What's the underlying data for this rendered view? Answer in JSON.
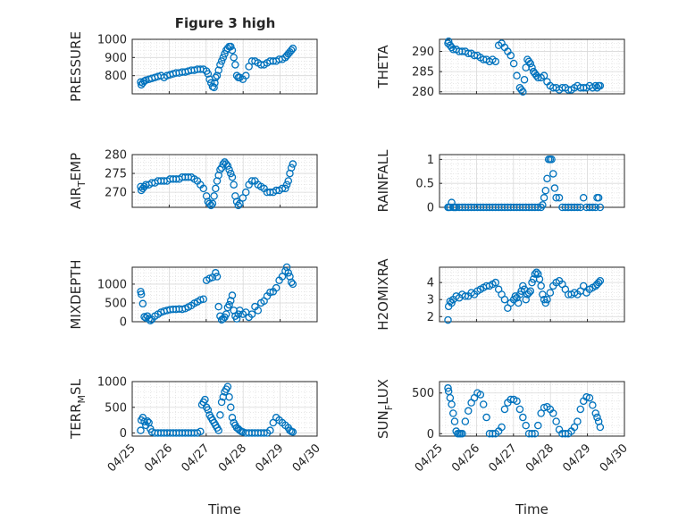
{
  "chart_data": [
    {
      "type": "scatter",
      "title": "Figure 3 high",
      "ylabel": "PRESSURE",
      "xlabel": "",
      "ylim": [
        700,
        1000
      ],
      "yticks": [
        800,
        900,
        1000
      ],
      "x": [
        120.6,
        121,
        122,
        123,
        124,
        126,
        128,
        130,
        132,
        134,
        136,
        138,
        140,
        142,
        144,
        146,
        148,
        150,
        152,
        154,
        156,
        158,
        160,
        162,
        164,
        165,
        166,
        167,
        168,
        169,
        169.5,
        170,
        171,
        172,
        173,
        174,
        175,
        176,
        177,
        178,
        179,
        180,
        181,
        182,
        183,
        184,
        185,
        186,
        188,
        190,
        192,
        194,
        196,
        198,
        200,
        202,
        204,
        206,
        208,
        210,
        212,
        214,
        216,
        217,
        218,
        219,
        220,
        221
      ],
      "y": [
        765,
        750,
        760,
        770,
        775,
        780,
        785,
        790,
        795,
        800,
        790,
        800,
        805,
        810,
        815,
        815,
        820,
        820,
        825,
        830,
        830,
        835,
        835,
        835,
        825,
        810,
        780,
        760,
        740,
        735,
        760,
        790,
        800,
        830,
        860,
        880,
        900,
        920,
        940,
        950,
        960,
        960,
        940,
        900,
        860,
        800,
        790,
        790,
        780,
        800,
        850,
        880,
        880,
        870,
        860,
        860,
        870,
        880,
        880,
        880,
        890,
        890,
        900,
        910,
        920,
        930,
        940,
        950
      ]
    },
    {
      "type": "scatter",
      "title": "",
      "ylabel": "THETA",
      "xlabel": "",
      "ylim": [
        279.5,
        293
      ],
      "yticks": [
        280,
        285,
        290
      ],
      "x": [
        120.6,
        121,
        122,
        123,
        124,
        126,
        128,
        130,
        132,
        134,
        136,
        138,
        140,
        142,
        144,
        146,
        148,
        150,
        152,
        154,
        156,
        158,
        160,
        162,
        164,
        166,
        168,
        169,
        170,
        171,
        172,
        173,
        174,
        175,
        176,
        177,
        178,
        179,
        180,
        182,
        184,
        186,
        188,
        190,
        192,
        194,
        196,
        198,
        200,
        202,
        204,
        206,
        208,
        210,
        212,
        214,
        216,
        218,
        219,
        220,
        221
      ],
      "y": [
        292,
        292.5,
        291.5,
        291,
        290.5,
        290.5,
        290,
        290,
        290,
        289.5,
        289.5,
        289,
        289,
        288.5,
        288,
        288,
        287.5,
        288,
        287.5,
        291.5,
        292,
        291,
        290,
        289,
        287,
        284,
        281,
        280.5,
        280,
        283,
        286,
        288,
        287.5,
        287,
        286,
        285,
        284.5,
        284,
        283.5,
        283.5,
        284,
        282.5,
        281.5,
        281,
        281,
        280.5,
        281,
        281,
        280.5,
        280.5,
        281,
        281.5,
        281,
        281,
        281,
        281.5,
        281,
        281.5,
        281,
        281.5,
        281.5
      ]
    },
    {
      "type": "scatter",
      "title": "",
      "ylabel": "AIR_TEMP",
      "xlabel": "",
      "ylim": [
        266,
        280
      ],
      "yticks": [
        270,
        275,
        280
      ],
      "x": [
        120.6,
        121,
        122,
        123,
        124,
        126,
        128,
        130,
        132,
        134,
        136,
        138,
        140,
        142,
        144,
        146,
        148,
        150,
        152,
        154,
        156,
        158,
        160,
        162,
        164,
        165,
        166,
        167,
        168,
        169,
        170,
        171,
        172,
        173,
        174,
        175,
        176,
        177,
        178,
        179,
        180,
        181,
        182,
        183,
        184,
        185,
        186,
        188,
        190,
        192,
        194,
        196,
        198,
        200,
        202,
        204,
        206,
        208,
        210,
        212,
        214,
        216,
        217,
        218,
        219,
        220,
        221
      ],
      "y": [
        271.5,
        270.5,
        271,
        271.5,
        272,
        272,
        272.5,
        272.5,
        273,
        273,
        273,
        273,
        273.5,
        273.5,
        273.5,
        273.5,
        274,
        274,
        274,
        274,
        273.5,
        273,
        272,
        271,
        269,
        267.5,
        267,
        266.5,
        267,
        269,
        271,
        273,
        274.5,
        276,
        276.5,
        277.5,
        278,
        277.5,
        277,
        276,
        275,
        274,
        272,
        269,
        267.5,
        266.5,
        267,
        268.5,
        270,
        272,
        273,
        273,
        272,
        271.5,
        271,
        270,
        270,
        270,
        270.5,
        270.5,
        271,
        271,
        272,
        273,
        275,
        276.5,
        277.5
      ]
    },
    {
      "type": "scatter",
      "title": "",
      "ylabel": "RAINFALL",
      "xlabel": "",
      "ylim": [
        0,
        1.1
      ],
      "yticks": [
        0,
        0.5,
        1
      ],
      "x": [
        120.6,
        121,
        122,
        123,
        124,
        125,
        126,
        128,
        130,
        132,
        134,
        136,
        138,
        140,
        142,
        144,
        146,
        148,
        150,
        152,
        154,
        156,
        158,
        160,
        162,
        164,
        166,
        168,
        170,
        172,
        174,
        176,
        178,
        180,
        182,
        183,
        184,
        185,
        186,
        187,
        188,
        189,
        190,
        191,
        192,
        194,
        196,
        198,
        200,
        202,
        204,
        206,
        208,
        210,
        212,
        214,
        216,
        218,
        219,
        220,
        221
      ],
      "y": [
        0,
        0,
        0,
        0.1,
        0,
        0,
        0,
        0,
        0,
        0,
        0,
        0,
        0,
        0,
        0,
        0,
        0,
        0,
        0,
        0,
        0,
        0,
        0,
        0,
        0,
        0,
        0,
        0,
        0,
        0,
        0,
        0,
        0,
        0,
        0,
        0.05,
        0.2,
        0.35,
        0.6,
        1,
        1,
        1,
        0.7,
        0.4,
        0.2,
        0.2,
        0,
        0,
        0,
        0,
        0,
        0,
        0,
        0.2,
        0,
        0,
        0,
        0,
        0.2,
        0.2,
        0
      ]
    },
    {
      "type": "scatter",
      "title": "",
      "ylabel": "MIXDEPTH",
      "xlabel": "",
      "ylim": [
        0,
        1450
      ],
      "yticks": [
        0,
        500,
        1000
      ],
      "x": [
        120.6,
        121,
        122,
        123,
        124,
        125,
        126,
        127,
        128,
        130,
        132,
        134,
        136,
        138,
        140,
        142,
        144,
        146,
        148,
        150,
        152,
        154,
        156,
        158,
        160,
        162,
        164,
        166,
        168,
        170,
        171,
        172,
        173,
        174,
        175,
        176,
        177,
        178,
        179,
        180,
        181,
        182,
        183,
        184,
        185,
        186,
        188,
        190,
        192,
        194,
        196,
        198,
        200,
        202,
        204,
        206,
        208,
        210,
        212,
        214,
        216,
        217,
        218,
        219,
        220,
        221
      ],
      "y": [
        800,
        730,
        480,
        130,
        100,
        150,
        80,
        30,
        60,
        150,
        200,
        250,
        280,
        300,
        320,
        330,
        330,
        340,
        330,
        350,
        390,
        430,
        490,
        530,
        580,
        600,
        1100,
        1150,
        1180,
        1300,
        1200,
        400,
        150,
        50,
        80,
        120,
        200,
        380,
        450,
        560,
        700,
        300,
        150,
        80,
        200,
        300,
        200,
        250,
        120,
        200,
        400,
        300,
        500,
        550,
        680,
        780,
        800,
        900,
        1100,
        1200,
        1350,
        1450,
        1300,
        1200,
        1050,
        1000
      ]
    },
    {
      "type": "scatter",
      "title": "",
      "ylabel": "H2OMIXRA",
      "xlabel": "",
      "ylim": [
        1.7,
        4.9
      ],
      "yticks": [
        2,
        3,
        4
      ],
      "x": [
        120.6,
        121,
        122,
        123,
        124,
        126,
        128,
        130,
        132,
        134,
        136,
        138,
        140,
        142,
        144,
        146,
        148,
        150,
        152,
        154,
        156,
        158,
        160,
        162,
        164,
        165,
        166,
        167,
        168,
        169,
        170,
        171,
        172,
        173,
        174,
        175,
        176,
        177,
        178,
        179,
        180,
        181,
        182,
        183,
        184,
        185,
        186,
        188,
        190,
        192,
        194,
        196,
        198,
        200,
        202,
        204,
        206,
        208,
        210,
        212,
        214,
        216,
        218,
        219,
        220,
        221
      ],
      "y": [
        1.8,
        2.6,
        2.9,
        2.8,
        3,
        3.2,
        3.1,
        3.3,
        3.2,
        3.2,
        3.4,
        3.3,
        3.5,
        3.6,
        3.7,
        3.8,
        3.8,
        3.9,
        4,
        3.6,
        3.3,
        3,
        2.5,
        2.8,
        3,
        3.2,
        3.1,
        2.8,
        3.3,
        3.5,
        3.8,
        3.6,
        3,
        3.3,
        3.4,
        3.5,
        4,
        4.2,
        4.5,
        4.6,
        4.5,
        4.2,
        3.8,
        3.3,
        3,
        2.8,
        3,
        3.4,
        3.8,
        4,
        4.1,
        3.9,
        3.6,
        3.3,
        3.3,
        3.4,
        3.3,
        3.5,
        3.8,
        3.4,
        3.6,
        3.7,
        3.8,
        3.9,
        4,
        4.1
      ]
    },
    {
      "type": "scatter",
      "title": "",
      "ylabel": "TERR_MSL",
      "xlabel": "Time",
      "ylim": [
        -60,
        1000
      ],
      "yticks": [
        0,
        500,
        1000
      ],
      "xticklabels": [
        "04/25",
        "04/26",
        "04/27",
        "04/28",
        "04/29",
        "04/30"
      ],
      "x": [
        120.6,
        121,
        122,
        123,
        124,
        125,
        126,
        127,
        128,
        130,
        132,
        134,
        136,
        138,
        140,
        142,
        144,
        146,
        148,
        150,
        152,
        154,
        156,
        158,
        160,
        161,
        162,
        163,
        164,
        165,
        166,
        167,
        168,
        169,
        170,
        171,
        172,
        173,
        174,
        175,
        176,
        177,
        178,
        179,
        180,
        181,
        182,
        183,
        184,
        185,
        186,
        187,
        188,
        190,
        192,
        194,
        196,
        198,
        200,
        202,
        204,
        206,
        208,
        210,
        212,
        214,
        216,
        218,
        219,
        220,
        221
      ],
      "y": [
        50,
        250,
        300,
        220,
        150,
        230,
        200,
        80,
        20,
        0,
        0,
        0,
        0,
        0,
        0,
        0,
        0,
        0,
        0,
        0,
        0,
        0,
        0,
        0,
        30,
        550,
        600,
        650,
        500,
        450,
        350,
        300,
        250,
        200,
        150,
        100,
        50,
        350,
        600,
        700,
        800,
        850,
        900,
        700,
        500,
        300,
        200,
        150,
        100,
        80,
        50,
        30,
        20,
        0,
        0,
        0,
        0,
        0,
        0,
        0,
        0,
        50,
        200,
        300,
        250,
        200,
        150,
        100,
        50,
        30,
        20
      ]
    },
    {
      "type": "scatter",
      "title": "",
      "ylabel": "SUN_FLUX",
      "xlabel": "Time",
      "ylim": [
        -30,
        640
      ],
      "yticks": [
        0,
        500
      ],
      "xticklabels": [
        "04/25",
        "04/26",
        "04/27",
        "04/28",
        "04/29",
        "04/30"
      ],
      "x": [
        120.6,
        121,
        122,
        123,
        124,
        125,
        126,
        127,
        128,
        129,
        130,
        132,
        134,
        136,
        138,
        140,
        142,
        144,
        146,
        148,
        150,
        152,
        154,
        156,
        158,
        160,
        162,
        164,
        166,
        168,
        170,
        172,
        174,
        176,
        178,
        180,
        182,
        184,
        186,
        188,
        190,
        192,
        194,
        196,
        198,
        200,
        202,
        204,
        206,
        208,
        210,
        212,
        214,
        216,
        218,
        219,
        220,
        221
      ],
      "y": [
        560,
        520,
        440,
        360,
        250,
        150,
        30,
        0,
        0,
        0,
        0,
        150,
        280,
        380,
        440,
        500,
        480,
        360,
        200,
        0,
        0,
        0,
        30,
        80,
        300,
        380,
        420,
        420,
        400,
        300,
        200,
        100,
        0,
        0,
        0,
        100,
        250,
        320,
        330,
        300,
        250,
        150,
        50,
        0,
        0,
        0,
        30,
        80,
        150,
        300,
        400,
        450,
        440,
        350,
        250,
        200,
        150,
        80
      ]
    }
  ]
}
